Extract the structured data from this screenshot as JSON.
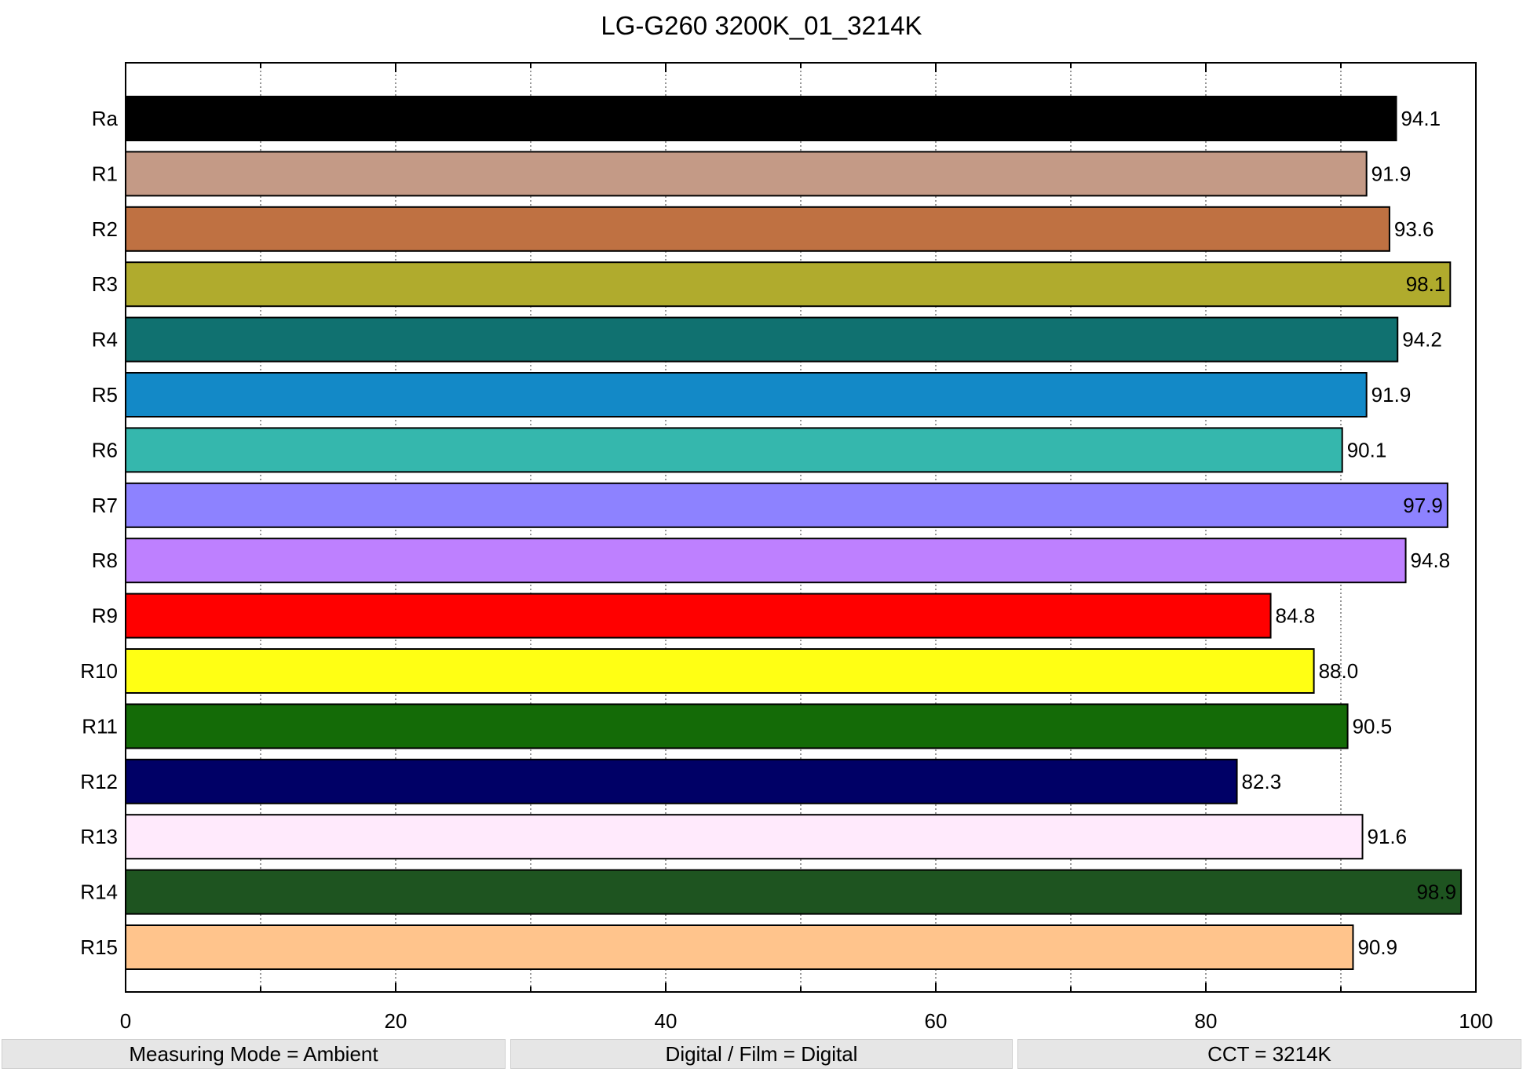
{
  "chart_data": {
    "type": "bar",
    "orientation": "horizontal",
    "title": "LG-G260 3200K_01_3214K",
    "xlim": [
      0,
      100
    ],
    "x_ticks": [
      0,
      20,
      40,
      60,
      80,
      100
    ],
    "grid": "vertical dotted lines every 10",
    "categories": [
      "Ra",
      "R1",
      "R2",
      "R3",
      "R4",
      "R5",
      "R6",
      "R7",
      "R8",
      "R9",
      "R10",
      "R11",
      "R12",
      "R13",
      "R14",
      "R15"
    ],
    "values": [
      94.1,
      91.9,
      93.6,
      98.1,
      94.2,
      91.9,
      90.1,
      97.9,
      94.8,
      84.8,
      88.0,
      90.5,
      82.3,
      91.6,
      98.9,
      90.9
    ],
    "value_labels": [
      "94.1",
      "91.9",
      "93.6",
      "98.1",
      "94.2",
      "91.9",
      "90.1",
      "97.9",
      "94.8",
      "84.8",
      "88.0",
      "90.5",
      "82.3",
      "91.6",
      "98.9",
      "90.9"
    ],
    "colors": [
      "#000000",
      "#c49a86",
      "#bf7142",
      "#b0ab2d",
      "#107170",
      "#1389c7",
      "#35b7ad",
      "#8d82ff",
      "#be80ff",
      "#ff0000",
      "#ffff14",
      "#146b07",
      "#000066",
      "#ffeafc",
      "#1e5420",
      "#ffc48c"
    ],
    "label_color_dark": "#000000",
    "label_color_light": "#ffffff"
  },
  "status": {
    "measuring_mode": "Measuring Mode = Ambient",
    "digital_film": "Digital / Film = Digital",
    "cct": "CCT = 3214K"
  }
}
